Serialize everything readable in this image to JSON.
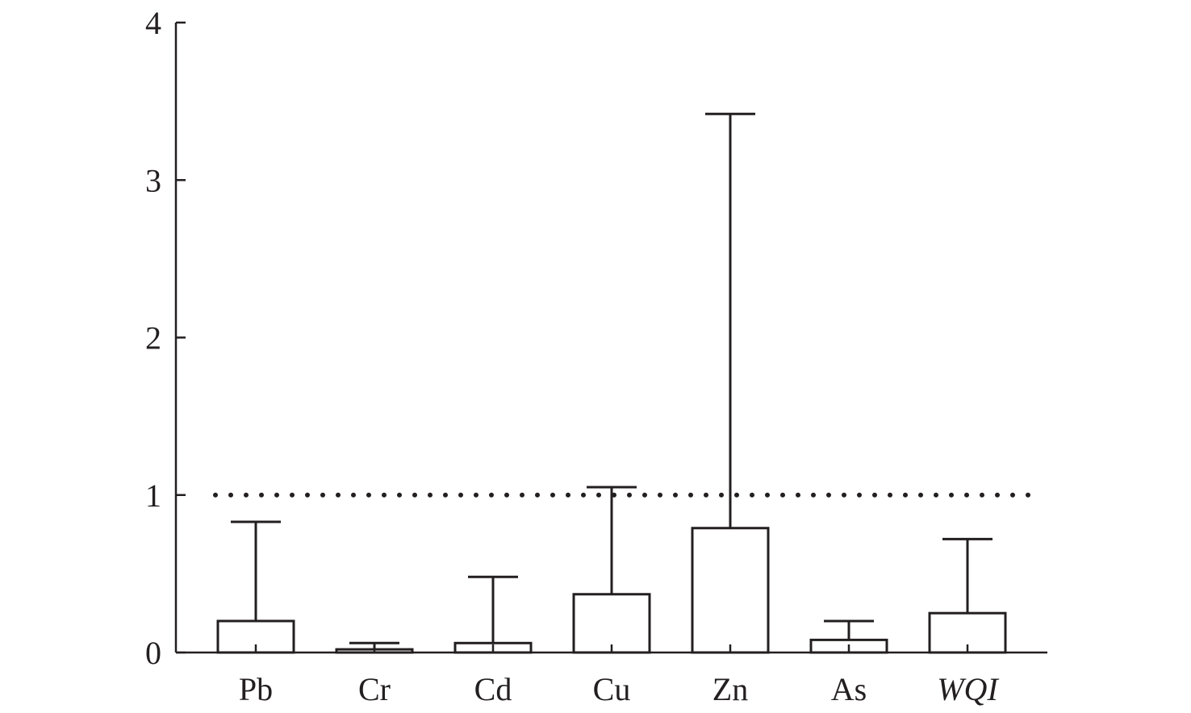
{
  "chart_data": {
    "type": "bar",
    "title": "",
    "xlabel": "",
    "ylabel": "",
    "categories": [
      "Pb",
      "Cr",
      "Cd",
      "Cu",
      "Zn",
      "As",
      "WQI"
    ],
    "italic_categories": [
      "WQI"
    ],
    "series": [
      {
        "values": [
          0.2,
          0.02,
          0.06,
          0.37,
          0.79,
          0.08,
          0.25
        ],
        "error_upper": [
          0.83,
          0.06,
          0.48,
          1.05,
          3.42,
          0.2,
          0.72
        ]
      }
    ],
    "ylim": [
      0,
      4
    ],
    "yticks": [
      0,
      1,
      2,
      3,
      4
    ],
    "reference_line": {
      "y": 1,
      "style": "dotted"
    },
    "grid": false,
    "legend": "none",
    "colors": {
      "axis": "#231f20",
      "bar_fill": "#ffffff",
      "bar_edge": "#231f20"
    }
  }
}
